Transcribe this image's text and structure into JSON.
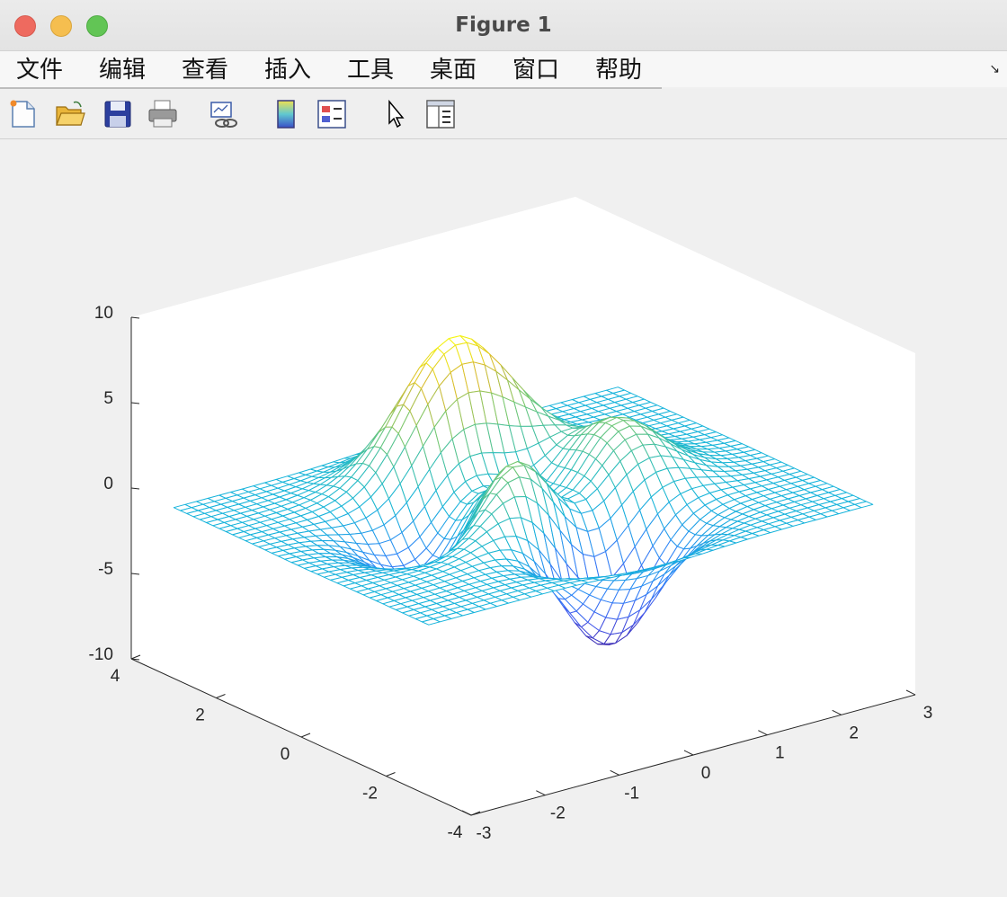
{
  "window": {
    "title": "Figure 1",
    "buttons": [
      "close",
      "minimize",
      "zoom"
    ]
  },
  "menubar": {
    "items": [
      "文件",
      "编辑",
      "查看",
      "插入",
      "工具",
      "桌面",
      "窗口",
      "帮助"
    ]
  },
  "toolbar": {
    "icons": [
      "new-figure-icon",
      "open-file-icon",
      "save-icon",
      "print-icon",
      "link-plot-icon",
      "colorbar-icon",
      "legend-icon",
      "pointer-icon",
      "property-inspector-icon"
    ]
  },
  "chart_data": {
    "type": "mesh3d",
    "function": "peaks",
    "x_range": [
      -3,
      3
    ],
    "y_range": [
      -4,
      4
    ],
    "zlim": [
      -10,
      10
    ],
    "x_ticks": [
      -3,
      -2,
      -1,
      0,
      1,
      2,
      3
    ],
    "y_ticks": [
      -4,
      -2,
      0,
      2,
      4
    ],
    "z_ticks": [
      -10,
      -5,
      0,
      5,
      10
    ],
    "x_tick_labels": [
      "-3",
      "-2",
      "-1",
      "0",
      "1",
      "2",
      "3"
    ],
    "y_tick_labels": [
      "-4",
      "-2",
      "0",
      "2",
      "4"
    ],
    "z_tick_labels": [
      "-10",
      "-5",
      "0",
      "5",
      "10"
    ],
    "grid_points": 40,
    "colormap": "parula",
    "colors": {
      "low": "#3e26a8",
      "mid": "#2ab7c8",
      "high": "#f9fb0e",
      "axes_bg": "#ffffff",
      "figure_bg": "#f0f0f0"
    }
  }
}
